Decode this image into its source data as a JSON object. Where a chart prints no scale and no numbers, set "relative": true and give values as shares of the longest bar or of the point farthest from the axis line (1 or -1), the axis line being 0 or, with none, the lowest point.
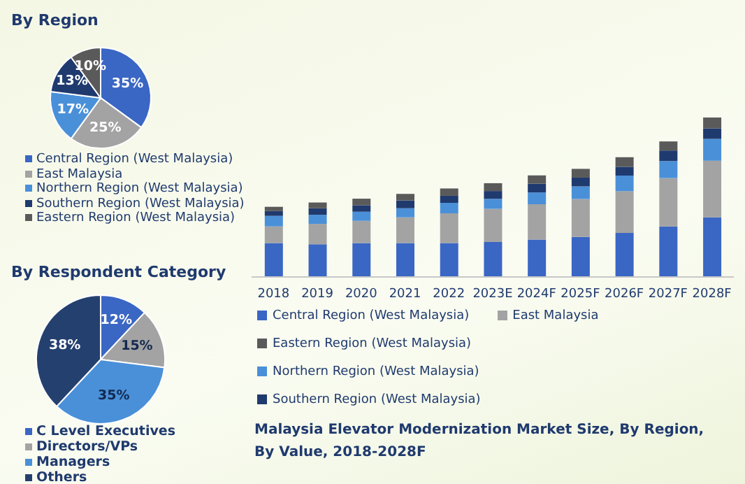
{
  "chart_data": [
    {
      "type": "pie",
      "title": "By Region",
      "categories": [
        "Central Region (West Malaysia)",
        "East Malaysia",
        "Northern Region (West Malaysia)",
        "Southern Region (West Malaysia)",
        "Eastern Region (West Malaysia)"
      ],
      "values": [
        35,
        25,
        17,
        13,
        10
      ],
      "colors": [
        "#3a66c4",
        "#a3a3a3",
        "#4a90d9",
        "#1f3a6e",
        "#5a5a5a"
      ],
      "value_labels": [
        "35%",
        "25%",
        "17%",
        "13%",
        "10%"
      ],
      "legend": "bottom"
    },
    {
      "type": "pie",
      "title": "By Respondent Category",
      "categories": [
        "C Level Executives",
        "Directors/VPs",
        "Managers",
        "Others"
      ],
      "values": [
        12,
        15,
        35,
        38
      ],
      "colors": [
        "#3a66c4",
        "#a3a3a3",
        "#4a90d9",
        "#24406f"
      ],
      "value_labels": [
        "12%",
        "15%",
        "35%",
        "38%"
      ],
      "legend": "bottom"
    },
    {
      "type": "bar",
      "title": "Malaysia Elevator Modernization Market Size, By Region, By Value, 2018-2028F",
      "categories": [
        "2018",
        "2019",
        "2020",
        "2021",
        "2022",
        "2023E",
        "2024F",
        "2025F",
        "2026F",
        "2027F",
        "2028F"
      ],
      "stacked": true,
      "relative": true,
      "legend": "bottom",
      "series": [
        {
          "name": "Central Region (West Malaysia)",
          "color": "#3a66c4",
          "values": [
            0.213,
            0.205,
            0.213,
            0.213,
            0.213,
            0.219,
            0.235,
            0.251,
            0.276,
            0.317,
            0.374
          ]
        },
        {
          "name": "East Malaysia",
          "color": "#a3a3a3",
          "values": [
            0.104,
            0.128,
            0.139,
            0.161,
            0.186,
            0.208,
            0.221,
            0.238,
            0.262,
            0.303,
            0.355
          ]
        },
        {
          "name": "Northern Region (West Malaysia)",
          "color": "#4a90d9",
          "values": [
            0.066,
            0.057,
            0.057,
            0.057,
            0.066,
            0.063,
            0.074,
            0.079,
            0.098,
            0.107,
            0.137
          ]
        },
        {
          "name": "Southern Region (West Malaysia)",
          "color": "#1f3a6e",
          "values": [
            0.03,
            0.041,
            0.041,
            0.049,
            0.044,
            0.049,
            0.055,
            0.055,
            0.055,
            0.066,
            0.066
          ]
        },
        {
          "name": "Eastern Region (West Malaysia)",
          "color": "#5a5a5a",
          "values": [
            0.027,
            0.036,
            0.041,
            0.041,
            0.046,
            0.049,
            0.052,
            0.055,
            0.06,
            0.057,
            0.068
          ]
        }
      ]
    }
  ]
}
